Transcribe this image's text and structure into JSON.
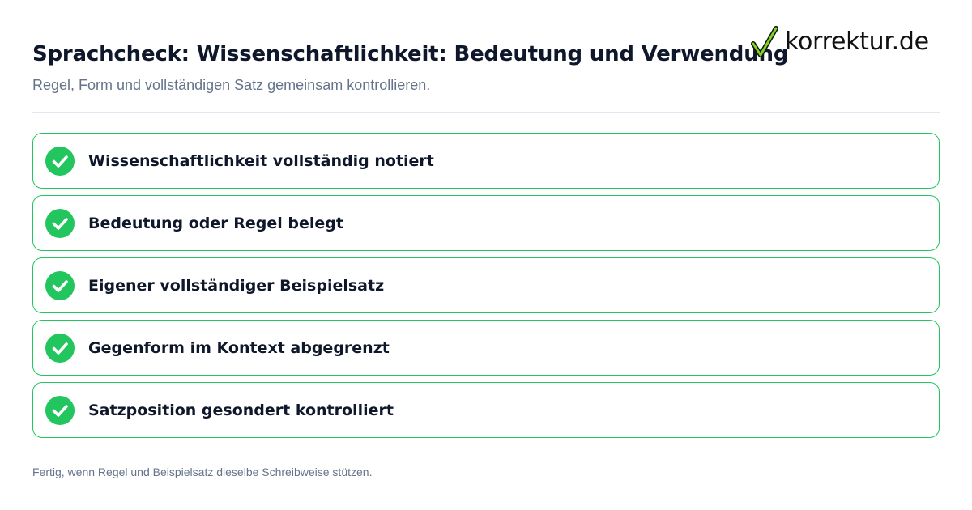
{
  "header": {
    "title": "Sprachcheck: Wissenschaftlichkeit: Bedeutung und Verwendung",
    "subtitle": "Regel, Form und vollständigen Satz gemeinsam kontrollieren."
  },
  "logo": {
    "text": "korrektur.de",
    "icon": "checkmark-icon",
    "icon_colors": [
      "#7ed321",
      "#111111"
    ]
  },
  "checklist": {
    "items": [
      {
        "label": "Wissenschaftlichkeit vollständig notiert",
        "checked": true
      },
      {
        "label": "Bedeutung oder Regel belegt",
        "checked": true
      },
      {
        "label": "Eigener vollständiger Beispielsatz",
        "checked": true
      },
      {
        "label": "Gegenform im Kontext abgegrenzt",
        "checked": true
      },
      {
        "label": "Satzposition gesondert kontrolliert",
        "checked": true
      }
    ]
  },
  "footer": {
    "note": "Fertig, wenn Regel und Beispielsatz dieselbe Schreibweise stützen."
  },
  "colors": {
    "accent": "#22c55e",
    "title": "#0f172a",
    "muted": "#64748b",
    "divider": "#e2e8f0"
  }
}
